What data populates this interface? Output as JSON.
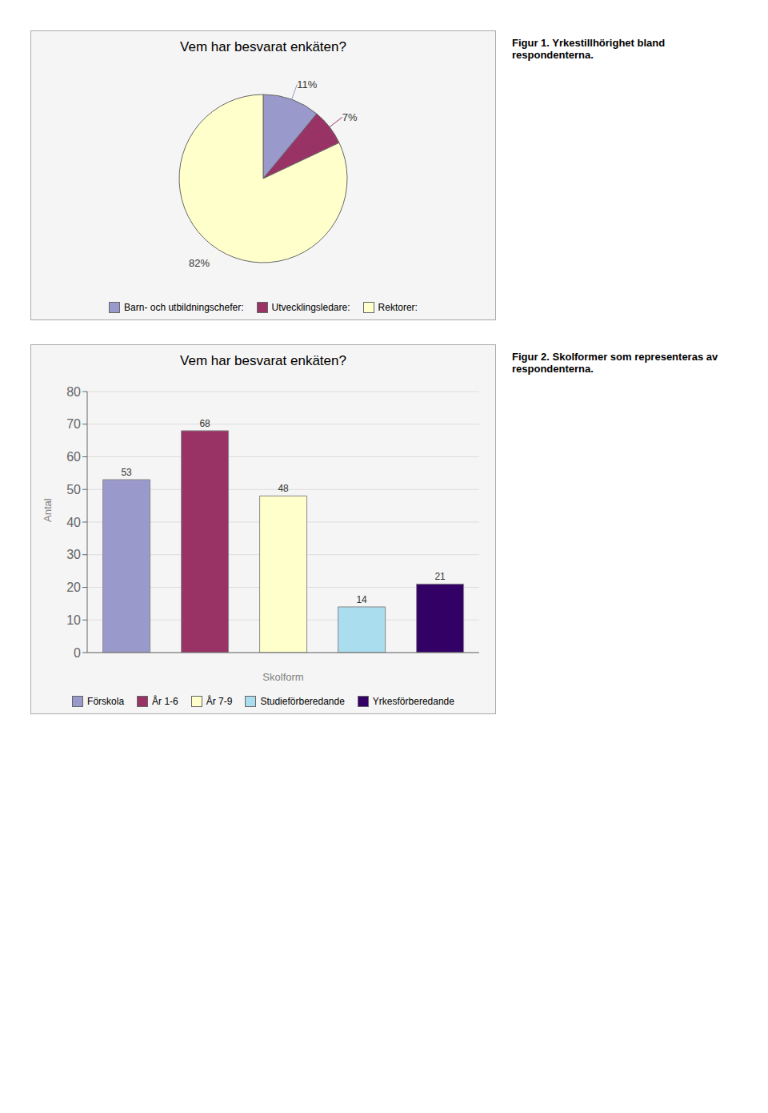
{
  "chart_data": [
    {
      "type": "pie",
      "title": "Vem har besvarat enkäten?",
      "subtitle": "Figur 1. Yrkestillhörighet bland respondenterna.",
      "categories": [
        "Barn- och utbildningschefer:",
        "Utvecklingsledare:",
        "Rektorer:"
      ],
      "values": [
        11,
        7,
        82
      ],
      "value_labels": [
        "11%",
        "7%",
        "82%"
      ],
      "colors": [
        "#9999cc",
        "#993366",
        "#ffffcc"
      ],
      "data_labels": true,
      "legend": "bottom"
    },
    {
      "type": "bar",
      "title": "Vem har besvarat enkäten?",
      "subtitle": "Figur 2. Skolformer som representeras av respondenterna.",
      "categories": [
        "Förskola",
        "År 1-6",
        "År 7-9",
        "Studieförberedande",
        "Yrkesförberedande"
      ],
      "values": [
        53,
        68,
        48,
        14,
        21
      ],
      "colors": [
        "#9999cc",
        "#993366",
        "#ffffcc",
        "#aaddee",
        "#330066"
      ],
      "xlabel": "Skolform",
      "ylabel": "Antal",
      "ylim": [
        0,
        80
      ],
      "yticks": [
        0,
        10,
        20,
        30,
        40,
        50,
        60,
        70,
        80
      ],
      "grid": true,
      "data_labels": true,
      "tick_labels": "y",
      "legend": "bottom"
    }
  ]
}
